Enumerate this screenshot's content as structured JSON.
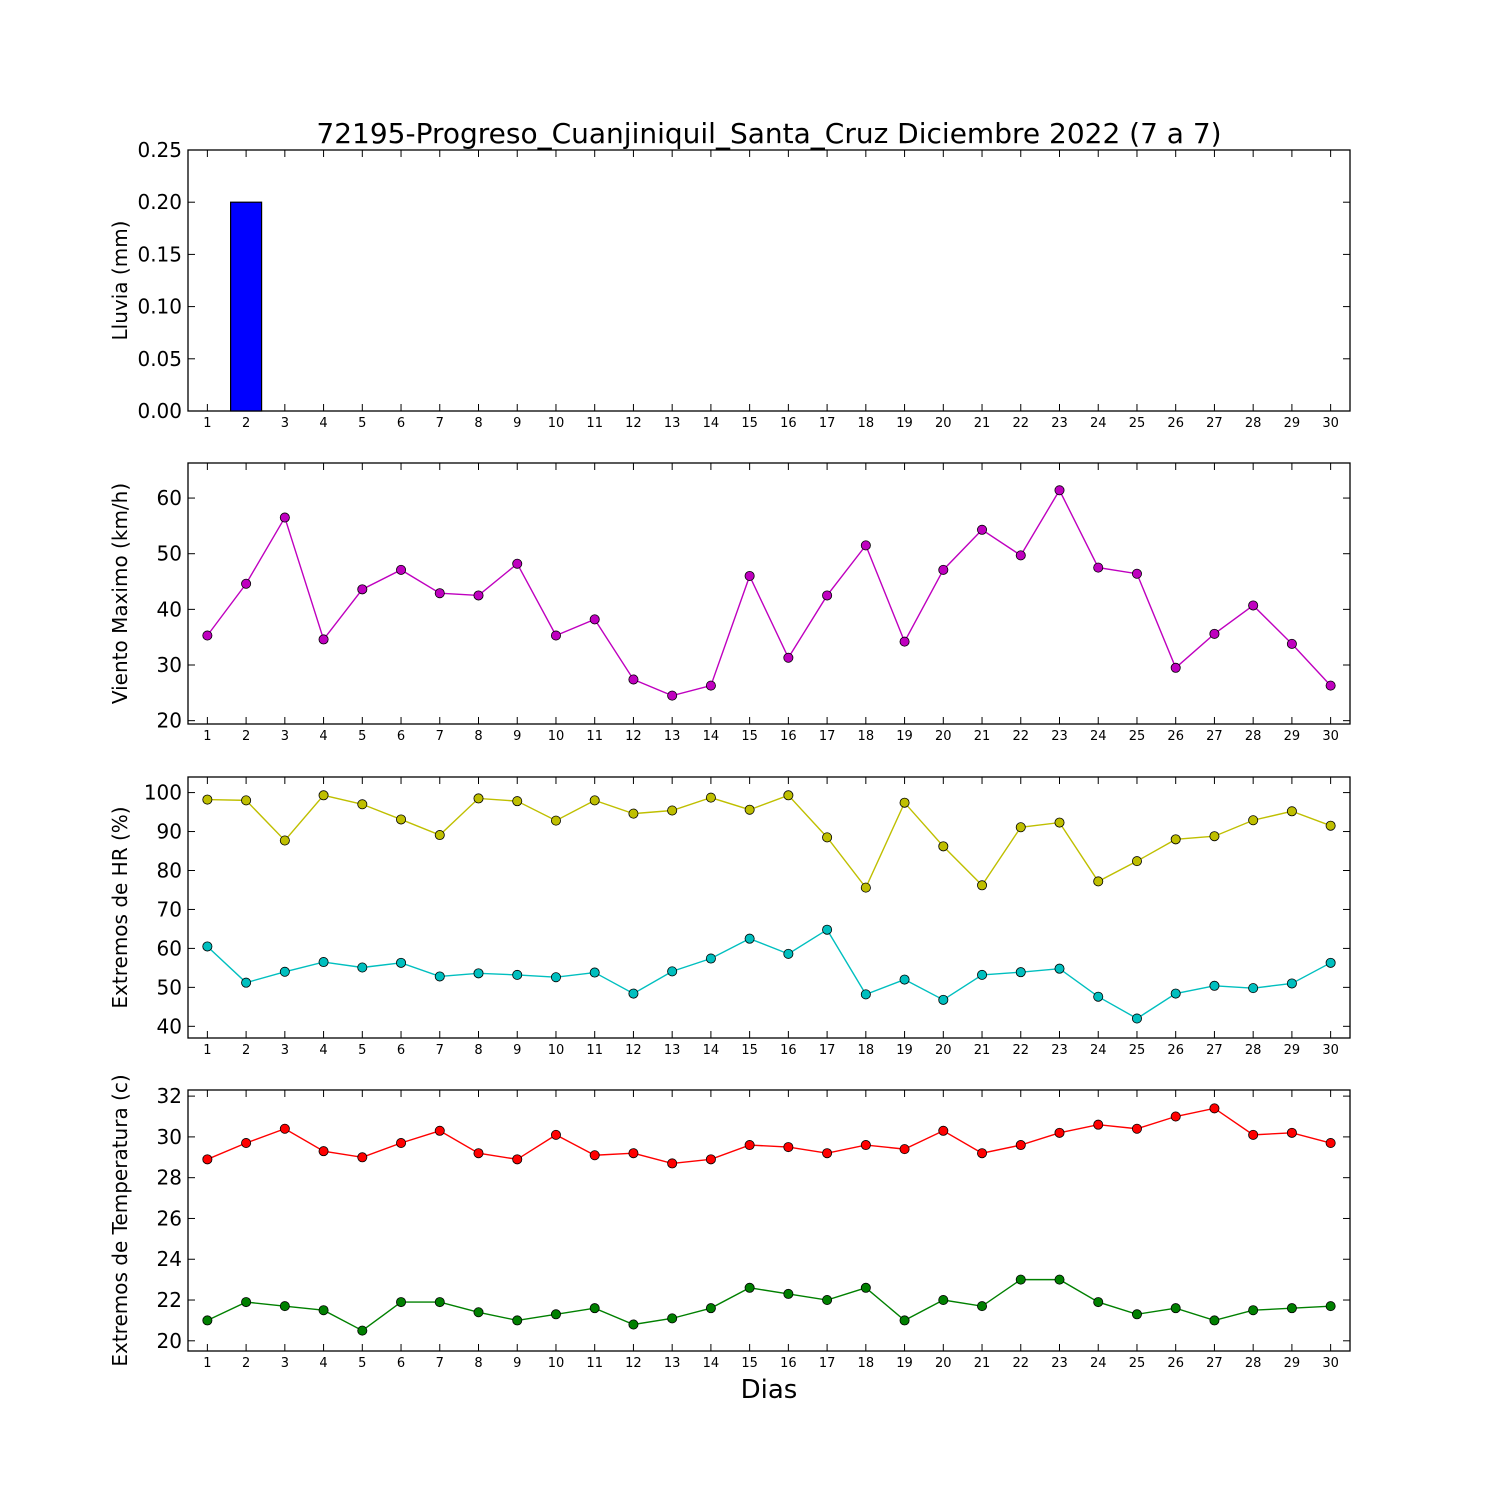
{
  "title": "72195-Progreso_Cuanjiniquil_Santa_Cruz Diciembre 2022  (7 a 7)",
  "xlabel": "Dias",
  "chart_data": [
    {
      "type": "bar",
      "ylabel": "Lluvia (mm)",
      "x": [
        1,
        2,
        3,
        4,
        5,
        6,
        7,
        8,
        9,
        10,
        11,
        12,
        13,
        14,
        15,
        16,
        17,
        18,
        19,
        20,
        21,
        22,
        23,
        24,
        25,
        26,
        27,
        28,
        29,
        30
      ],
      "xlim": [
        0.5,
        30.5
      ],
      "ylim": [
        0,
        0.25
      ],
      "yticks": [
        "0.00",
        "0.05",
        "0.10",
        "0.15",
        "0.20",
        "0.25"
      ],
      "series": [
        {
          "color": "#0000ff",
          "values": [
            0,
            0.2,
            0,
            0,
            0,
            0,
            0,
            0,
            0,
            0,
            0,
            0,
            0,
            0,
            0,
            0,
            0,
            0,
            0,
            0,
            0,
            0,
            0,
            0,
            0,
            0,
            0,
            0,
            0,
            0
          ]
        }
      ]
    },
    {
      "type": "line",
      "ylabel": "Viento Maximo (km/h)",
      "x": [
        1,
        2,
        3,
        4,
        5,
        6,
        7,
        8,
        9,
        10,
        11,
        12,
        13,
        14,
        15,
        16,
        17,
        18,
        19,
        20,
        21,
        22,
        23,
        24,
        25,
        26,
        27,
        28,
        29,
        30
      ],
      "xlim": [
        0.5,
        30.5
      ],
      "ylim": [
        19.4,
        66.3
      ],
      "yticks": [
        "20",
        "30",
        "40",
        "50",
        "60"
      ],
      "series": [
        {
          "color": "#bf00bf",
          "values": [
            35.3,
            44.6,
            56.5,
            34.6,
            43.6,
            47.1,
            42.9,
            42.5,
            48.2,
            35.3,
            38.2,
            27.4,
            24.5,
            26.3,
            46.0,
            31.3,
            42.5,
            51.5,
            34.2,
            47.1,
            54.3,
            49.7,
            61.4,
            47.5,
            46.4,
            29.5,
            35.6,
            40.7,
            33.8,
            26.3
          ]
        }
      ]
    },
    {
      "type": "line",
      "ylabel": "Extremos de HR (%)",
      "x": [
        1,
        2,
        3,
        4,
        5,
        6,
        7,
        8,
        9,
        10,
        11,
        12,
        13,
        14,
        15,
        16,
        17,
        18,
        19,
        20,
        21,
        22,
        23,
        24,
        25,
        26,
        27,
        28,
        29,
        30
      ],
      "xlim": [
        0.5,
        30.5
      ],
      "ylim": [
        37,
        104
      ],
      "yticks": [
        "40",
        "50",
        "60",
        "70",
        "80",
        "90",
        "100"
      ],
      "series": [
        {
          "color": "#bfbf00",
          "values": [
            98.2,
            98.0,
            87.7,
            99.3,
            97.0,
            93.1,
            89.1,
            98.5,
            97.8,
            92.8,
            98.0,
            94.6,
            95.4,
            98.7,
            95.6,
            99.3,
            88.5,
            75.6,
            97.4,
            86.2,
            76.2,
            91.1,
            92.3,
            77.2,
            82.4,
            88.0,
            88.8,
            92.9,
            95.2,
            91.5
          ]
        },
        {
          "color": "#00bfbf",
          "values": [
            60.5,
            51.2,
            54.0,
            56.5,
            55.1,
            56.3,
            52.8,
            53.6,
            53.2,
            52.6,
            53.8,
            48.4,
            54.1,
            57.4,
            62.5,
            58.6,
            64.8,
            48.2,
            52.0,
            46.8,
            53.2,
            53.9,
            54.8,
            47.6,
            42.0,
            48.4,
            50.4,
            49.8,
            51.0,
            56.3
          ]
        }
      ]
    },
    {
      "type": "line",
      "ylabel": "Extremos de Temperatura (c)",
      "x": [
        1,
        2,
        3,
        4,
        5,
        6,
        7,
        8,
        9,
        10,
        11,
        12,
        13,
        14,
        15,
        16,
        17,
        18,
        19,
        20,
        21,
        22,
        23,
        24,
        25,
        26,
        27,
        28,
        29,
        30
      ],
      "xlim": [
        0.5,
        30.5
      ],
      "ylim": [
        19.5,
        32.3
      ],
      "yticks": [
        "20",
        "22",
        "24",
        "26",
        "28",
        "30",
        "32"
      ],
      "series": [
        {
          "color": "#ff0000",
          "values": [
            28.9,
            29.7,
            30.4,
            29.3,
            29.0,
            29.7,
            30.3,
            29.2,
            28.9,
            30.1,
            29.1,
            29.2,
            28.7,
            28.9,
            29.6,
            29.5,
            29.2,
            29.6,
            29.4,
            30.3,
            29.2,
            29.6,
            30.2,
            30.6,
            30.4,
            31.0,
            31.4,
            30.1,
            30.2,
            29.7
          ]
        },
        {
          "color": "#008000",
          "values": [
            21.0,
            21.9,
            21.7,
            21.5,
            20.5,
            21.9,
            21.9,
            21.4,
            21.0,
            21.3,
            21.6,
            20.8,
            21.1,
            21.6,
            22.6,
            22.3,
            22.0,
            22.6,
            21.0,
            22.0,
            21.7,
            23.0,
            23.0,
            21.9,
            21.3,
            21.6,
            21.0,
            21.5,
            21.6,
            21.7
          ]
        }
      ]
    }
  ]
}
